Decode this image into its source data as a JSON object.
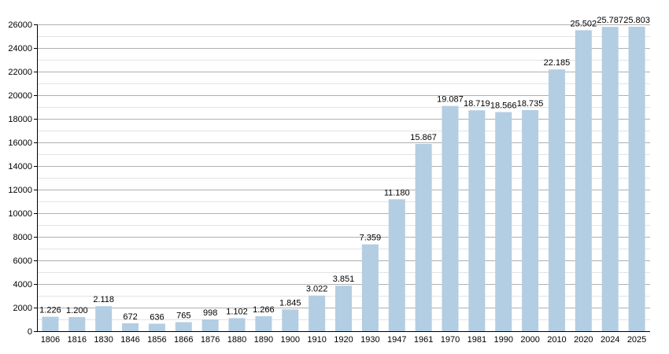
{
  "chart_data": {
    "type": "bar",
    "title": "",
    "xlabel": "",
    "ylabel": "",
    "ylim": [
      0,
      26000
    ],
    "yticks": [
      0,
      2000,
      4000,
      6000,
      8000,
      10000,
      12000,
      14000,
      16000,
      18000,
      20000,
      22000,
      24000,
      26000
    ],
    "grid": "horizontal major and minor lines",
    "categories": [
      "1806",
      "1816",
      "1830",
      "1846",
      "1856",
      "1866",
      "1876",
      "1880",
      "1890",
      "1900",
      "1910",
      "1920",
      "1930",
      "1947",
      "1961",
      "1970",
      "1981",
      "1990",
      "2000",
      "2010",
      "2020",
      "2024",
      "2025"
    ],
    "values": [
      1226,
      1200,
      2118,
      672,
      636,
      765,
      998,
      1102,
      1266,
      1845,
      3022,
      3851,
      7359,
      11180,
      15867,
      19087,
      18719,
      18566,
      18735,
      22185,
      25502,
      25787,
      25803
    ],
    "value_labels": [
      "1.226",
      "1.200",
      "2.118",
      "672",
      "636",
      "765",
      "998",
      "1.102",
      "1.266",
      "1.845",
      "3.022",
      "3.851",
      "7.359",
      "11.180",
      "15.867",
      "19.087",
      "18.719",
      "18.566",
      "18.735",
      "22.185",
      "25.502",
      "25.787",
      "25.803"
    ],
    "colors": {
      "bar": "#b3cde3",
      "major_grid": "#b0b0b0",
      "minor_grid": "#e3e3e3",
      "axis": "#000000"
    }
  }
}
